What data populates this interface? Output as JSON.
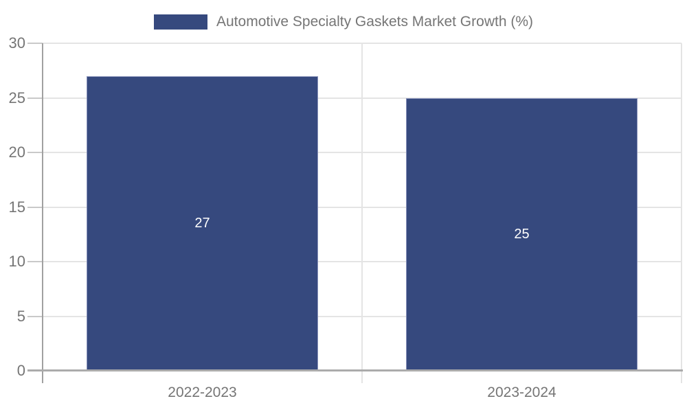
{
  "legend": {
    "label": "Automotive Specialty Gaskets Market Growth (%)"
  },
  "colors": {
    "bar": "#36497E",
    "bar_edge": "#8a93bb",
    "axis_text": "#757575",
    "grid_line": "#e4e4e4",
    "tick_line": "#c9c9c9",
    "y_axis_line": "#a0a0a0",
    "x_axis_line": "#ababab",
    "data_label": "#ffffff",
    "background": "#ffffff"
  },
  "chart_data": {
    "type": "bar",
    "title": "Automotive Specialty Gaskets Market Growth (%)",
    "categories": [
      "2022-2023",
      "2023-2024"
    ],
    "values": [
      27,
      25
    ],
    "data_labels": [
      "27",
      "25"
    ],
    "xlabel": "",
    "ylabel": "",
    "ylim": [
      0,
      30
    ],
    "yticks": [
      0,
      5,
      10,
      15,
      20,
      25,
      30
    ],
    "grid": true,
    "legend_position": "top",
    "series_name": "Automotive Specialty Gaskets Market Growth (%)"
  }
}
